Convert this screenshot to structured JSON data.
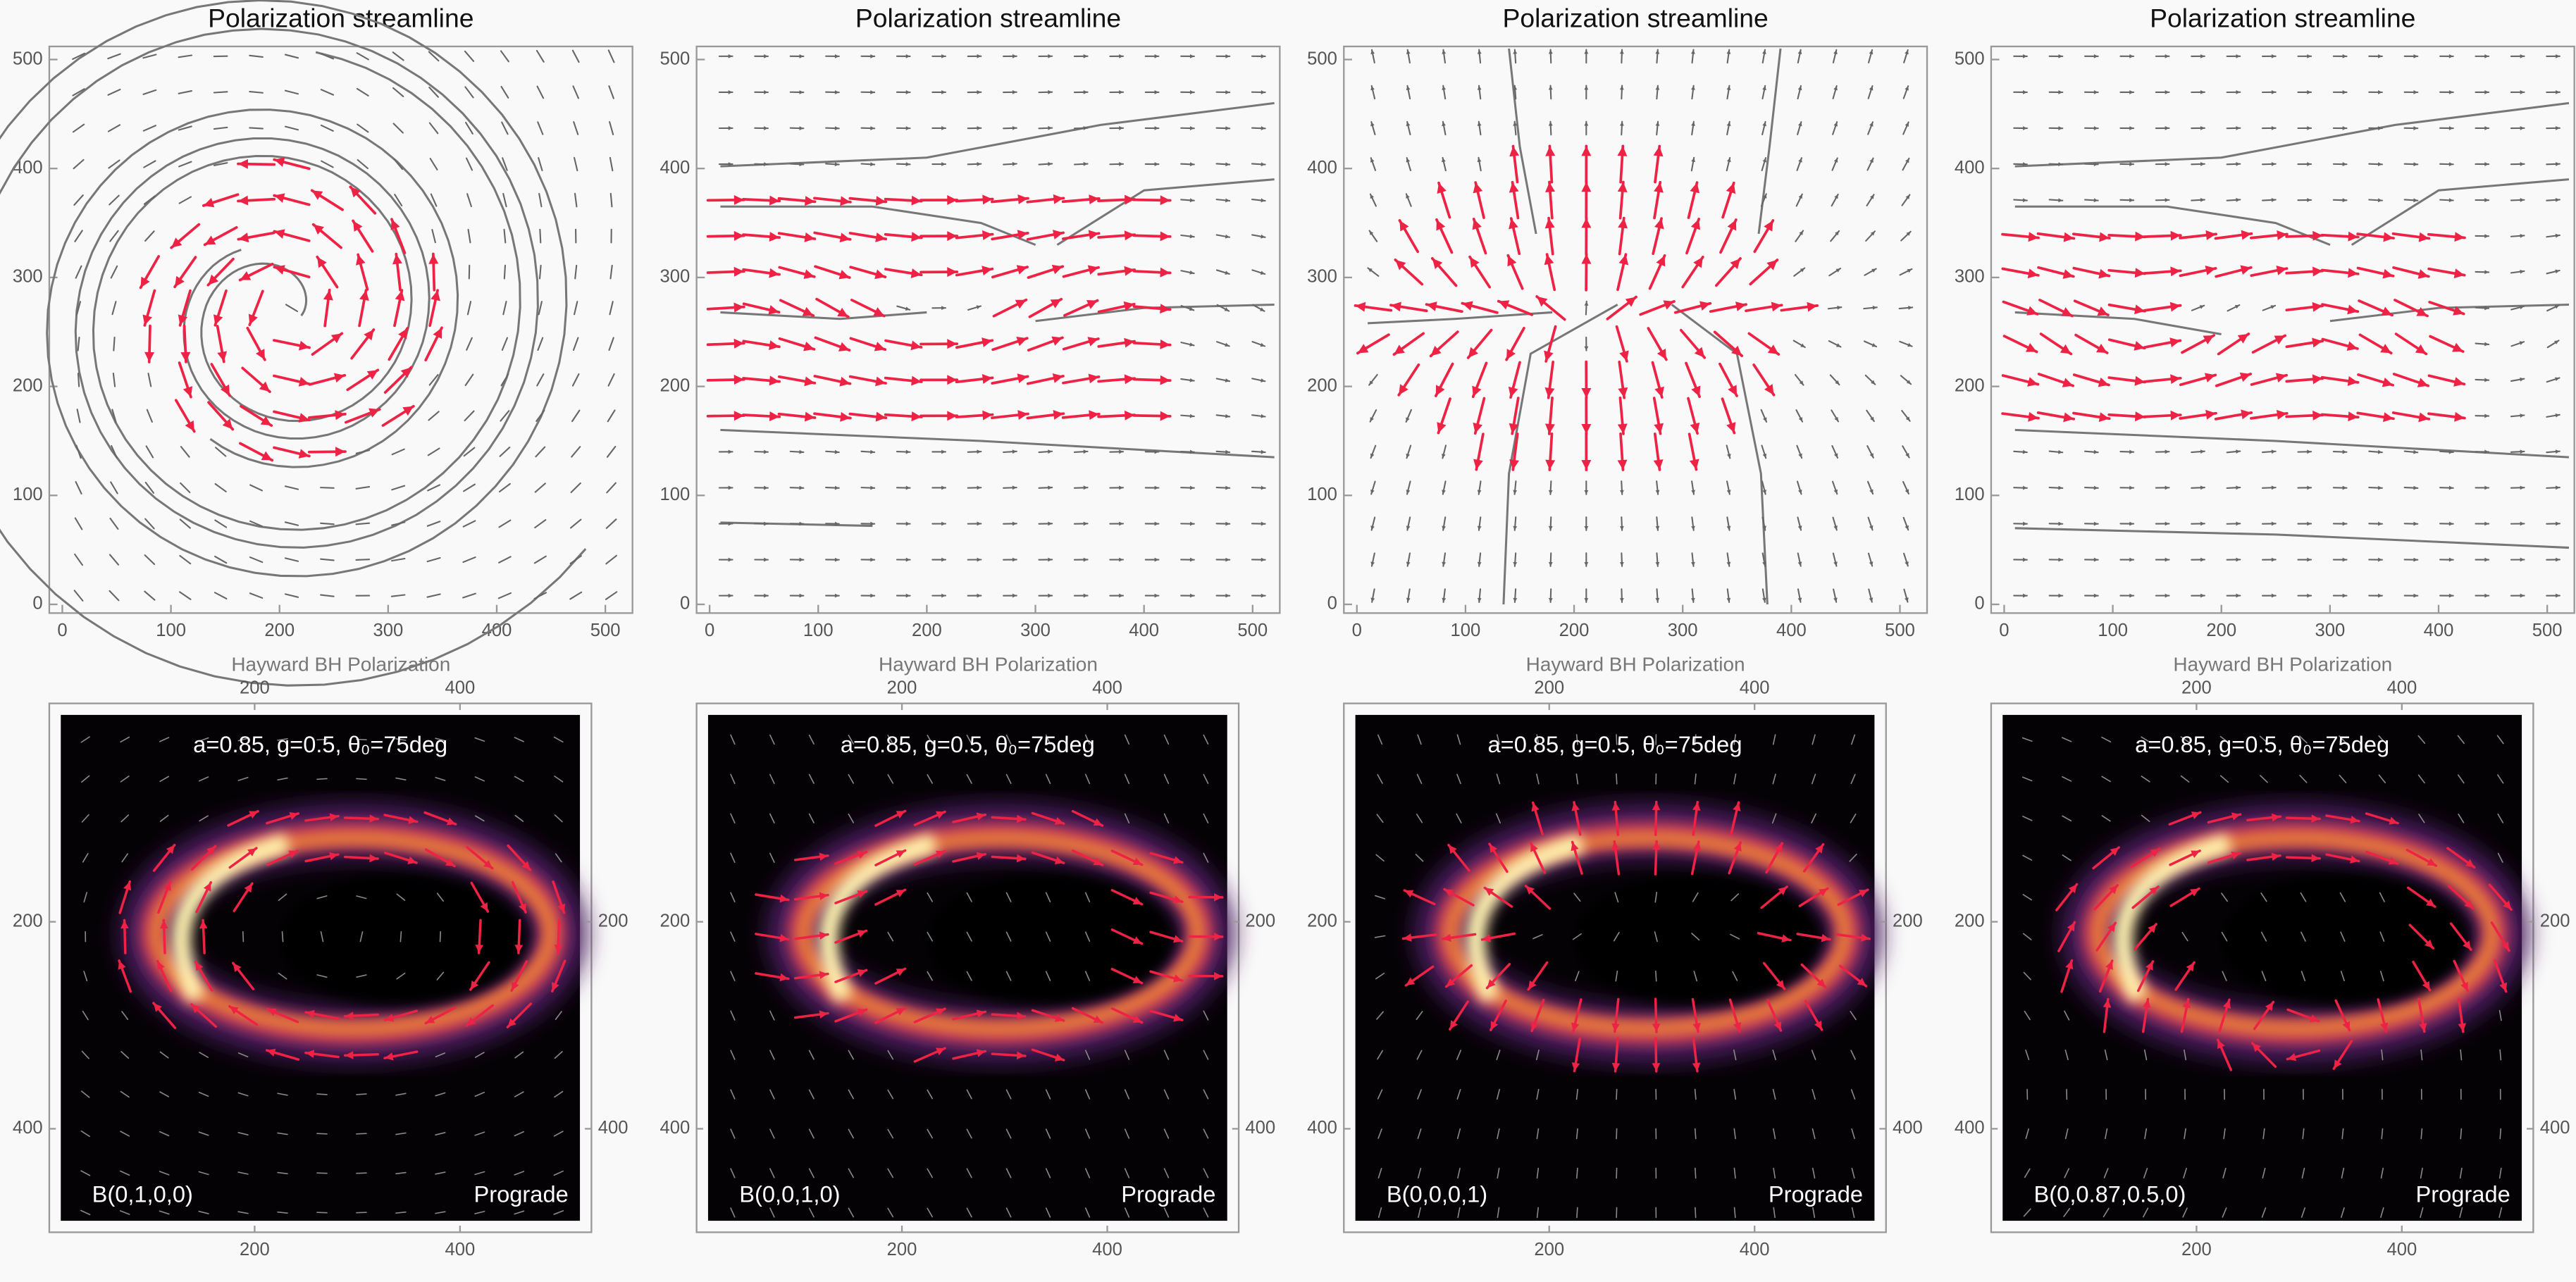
{
  "chart_data": [
    {
      "type": "streamline",
      "title": "Polarization streamline",
      "xlabel": "Hayward BH Polarization",
      "xlim": [
        -12,
        525
      ],
      "ylim": [
        -8,
        512
      ],
      "xticks": [
        0,
        100,
        200,
        300,
        400,
        500
      ],
      "yticks": [
        0,
        100,
        200,
        300,
        400,
        500
      ]
    },
    {
      "type": "streamline",
      "title": "Polarization streamline",
      "xlabel": "Hayward BH Polarization",
      "xlim": [
        -12,
        525
      ],
      "ylim": [
        -8,
        512
      ],
      "xticks": [
        0,
        100,
        200,
        300,
        400,
        500
      ],
      "yticks": [
        0,
        100,
        200,
        300,
        400,
        500
      ]
    },
    {
      "type": "streamline",
      "title": "Polarization streamline",
      "xlabel": "Hayward BH Polarization",
      "xlim": [
        -12,
        525
      ],
      "ylim": [
        -8,
        512
      ],
      "xticks": [
        0,
        100,
        200,
        300,
        400,
        500
      ],
      "yticks": [
        0,
        100,
        200,
        300,
        400,
        500
      ]
    },
    {
      "type": "streamline",
      "title": "Polarization streamline",
      "xlabel": "Hayward BH Polarization",
      "xlim": [
        -12,
        525
      ],
      "ylim": [
        -8,
        512
      ],
      "xticks": [
        0,
        100,
        200,
        300,
        400,
        500
      ],
      "yticks": [
        0,
        100,
        200,
        300,
        400,
        500
      ]
    },
    {
      "type": "image",
      "annotation": "a=0.85, g=0.5, θ₀=75deg",
      "label_left": "B(0,1,0,0)",
      "label_right": "Prograde",
      "xlim": [
        0,
        528
      ],
      "ylim": [
        -11,
        500
      ],
      "xticks": [
        200,
        400
      ],
      "yticks": [
        200,
        400
      ]
    },
    {
      "type": "image",
      "annotation": "a=0.85, g=0.5, θ₀=75deg",
      "label_left": "B(0,0,1,0)",
      "label_right": "Prograde",
      "xlim": [
        0,
        528
      ],
      "ylim": [
        -11,
        500
      ],
      "xticks": [
        200,
        400
      ],
      "yticks": [
        200,
        400
      ]
    },
    {
      "type": "image",
      "annotation": "a=0.85, g=0.5, θ₀=75deg",
      "label_left": "B(0,0,0,1)",
      "label_right": "Prograde",
      "xlim": [
        0,
        528
      ],
      "ylim": [
        -11,
        500
      ],
      "xticks": [
        200,
        400
      ],
      "yticks": [
        200,
        400
      ]
    },
    {
      "type": "image",
      "annotation": "a=0.85, g=0.5, θ₀=75deg",
      "label_left": "B(0,0.87,0.5,0)",
      "label_right": "Prograde",
      "xlim": [
        0,
        528
      ],
      "ylim": [
        -11,
        500
      ],
      "xticks": [
        200,
        400
      ],
      "yticks": [
        200,
        400
      ]
    }
  ]
}
